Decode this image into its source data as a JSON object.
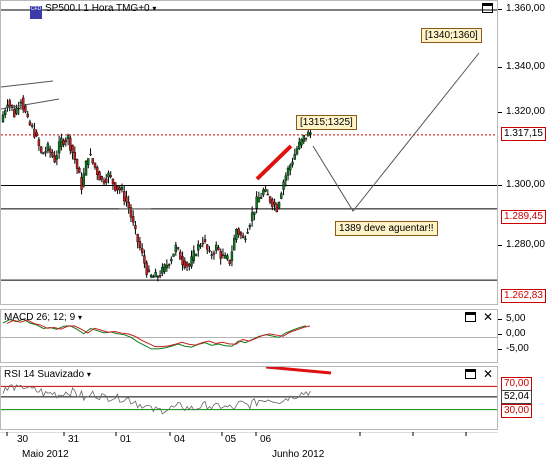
{
  "main": {
    "title": "SP500.I 1 Hora TMG+0",
    "dropdown_glyph": "▾",
    "logo_text": "CFD",
    "y_ticks": [
      "1.360,00",
      "1.340,00",
      "1.320,00",
      "1.300,00",
      "1.280,00"
    ],
    "price_tags": {
      "current": "1.317,15",
      "upper_line": "1.289,45",
      "low_line": "1.262,83"
    },
    "annotations": {
      "target": "[1340;1360]",
      "near": "[1315;1325]",
      "support_note": "1389 deve aguentar!!"
    },
    "colors": {
      "bull": "#0b7d1e",
      "bear": "#c81e1e",
      "tag_red": "#cc0000",
      "accent": "#3b3ba8"
    }
  },
  "macd": {
    "title": "MACD 26; 12; 9",
    "dropdown_glyph": "▾",
    "y_ticks": [
      "5,00",
      "0,00",
      "-5,00"
    ]
  },
  "rsi": {
    "title": "RSI 14 Suavizado",
    "dropdown_glyph": "▾",
    "levels": {
      "upper": "70,00",
      "mid": "52,04",
      "lower": "30,00"
    }
  },
  "xaxis": {
    "ticks": [
      "30",
      "31",
      "01",
      "04",
      "05",
      "06"
    ],
    "months": [
      "Maio 2012",
      "Junho 2012"
    ]
  },
  "chart_data": {
    "type": "line",
    "title": "SP500.I 1 Hora TMG+0",
    "ylim": [
      1255,
      1365
    ],
    "y_ticks": [
      1360,
      1340,
      1320,
      1300,
      1280
    ],
    "x_ticks": [
      "30",
      "31",
      "01",
      "04",
      "05",
      "06"
    ],
    "months": [
      "Maio 2012",
      "Junho 2012"
    ],
    "series": [
      {
        "name": "SP500.I",
        "values": [
          1322,
          1330,
          1325,
          1331,
          1322,
          1318,
          1310,
          1312,
          1308,
          1315,
          1316,
          1308,
          1298,
          1310,
          1305,
          1300,
          1302,
          1298,
          1296,
          1290,
          1280,
          1272,
          1264,
          1264,
          1266,
          1270,
          1275,
          1270,
          1268,
          1274,
          1278,
          1272,
          1275,
          1271,
          1270,
          1282,
          1278,
          1285,
          1292,
          1296,
          1293,
          1290,
          1300,
          1306,
          1312,
          1316
        ]
      }
    ],
    "reference_lines": [
      1317.15,
      1298.2,
      1289.45,
      1262.83
    ],
    "macd_ylim": [
      -7,
      8
    ],
    "rsi_levels": [
      70,
      52.04,
      30
    ],
    "legend": "none",
    "grid": false
  }
}
